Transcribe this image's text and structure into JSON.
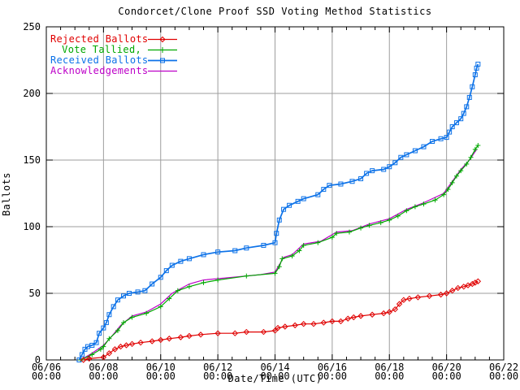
{
  "chart_data": {
    "type": "line",
    "title": "Condorcet/Clone Proof SSD Voting Method Statistics",
    "xlabel": "Date/Time (UTC)",
    "ylabel": "Ballots",
    "x_range_days": [
      0,
      16
    ],
    "ylim": [
      0,
      250
    ],
    "grid": true,
    "grid_color": "#9e9e9e",
    "legend_position": "top-left-inside",
    "x_ticks": [
      {
        "t": 0,
        "label": "06/06",
        "sublabel": "00:00"
      },
      {
        "t": 2,
        "label": "06/08",
        "sublabel": "00:00"
      },
      {
        "t": 4,
        "label": "06/10",
        "sublabel": "00:00"
      },
      {
        "t": 6,
        "label": "06/12",
        "sublabel": "00:00"
      },
      {
        "t": 8,
        "label": "06/14",
        "sublabel": "00:00"
      },
      {
        "t": 10,
        "label": "06/16",
        "sublabel": "00:00"
      },
      {
        "t": 12,
        "label": "06/18",
        "sublabel": "00:00"
      },
      {
        "t": 14,
        "label": "06/20",
        "sublabel": "00:00"
      },
      {
        "t": 16,
        "label": "06/22",
        "sublabel": "00:00"
      }
    ],
    "x_minor_tick_interval_days": 0.5,
    "y_ticks": [
      0,
      50,
      100,
      150,
      200,
      250
    ],
    "series": [
      {
        "name": "Rejected Ballots",
        "color": "#e00000",
        "marker": "diamond",
        "points": [
          [
            1.3,
            0
          ],
          [
            1.5,
            1
          ],
          [
            2.0,
            2
          ],
          [
            2.2,
            5
          ],
          [
            2.4,
            8
          ],
          [
            2.6,
            10
          ],
          [
            2.8,
            11
          ],
          [
            3.0,
            12
          ],
          [
            3.3,
            13
          ],
          [
            3.7,
            14
          ],
          [
            4.0,
            15
          ],
          [
            4.3,
            16
          ],
          [
            4.7,
            17
          ],
          [
            5.0,
            18
          ],
          [
            5.4,
            19
          ],
          [
            6.0,
            20
          ],
          [
            6.6,
            20
          ],
          [
            7.0,
            21
          ],
          [
            7.6,
            21
          ],
          [
            8.0,
            22
          ],
          [
            8.1,
            24
          ],
          [
            8.35,
            25
          ],
          [
            8.7,
            26
          ],
          [
            9.0,
            27
          ],
          [
            9.35,
            27
          ],
          [
            9.7,
            28
          ],
          [
            10.0,
            29
          ],
          [
            10.3,
            29
          ],
          [
            10.55,
            31
          ],
          [
            10.75,
            32
          ],
          [
            11.0,
            33
          ],
          [
            11.4,
            34
          ],
          [
            11.8,
            35
          ],
          [
            12.0,
            36
          ],
          [
            12.2,
            38
          ],
          [
            12.35,
            42
          ],
          [
            12.5,
            45
          ],
          [
            12.7,
            46
          ],
          [
            13.0,
            47
          ],
          [
            13.4,
            48
          ],
          [
            13.8,
            49
          ],
          [
            14.0,
            50
          ],
          [
            14.2,
            52
          ],
          [
            14.4,
            54
          ],
          [
            14.6,
            55
          ],
          [
            14.75,
            56
          ],
          [
            14.9,
            57
          ],
          [
            15.0,
            58
          ],
          [
            15.1,
            59
          ]
        ]
      },
      {
        "name": "Vote Tallied,",
        "color": "#00a800",
        "marker": "plus",
        "points": [
          [
            1.2,
            0
          ],
          [
            1.6,
            4
          ],
          [
            1.9,
            8
          ],
          [
            2.0,
            10
          ],
          [
            2.2,
            16
          ],
          [
            2.5,
            22
          ],
          [
            2.7,
            28
          ],
          [
            3.0,
            32
          ],
          [
            3.5,
            35
          ],
          [
            4.0,
            40
          ],
          [
            4.3,
            46
          ],
          [
            4.6,
            52
          ],
          [
            5.0,
            55
          ],
          [
            5.5,
            58
          ],
          [
            6.0,
            60
          ],
          [
            7.0,
            63
          ],
          [
            8.0,
            65
          ],
          [
            8.15,
            70
          ],
          [
            8.25,
            76
          ],
          [
            8.6,
            78
          ],
          [
            8.85,
            82
          ],
          [
            9.0,
            86
          ],
          [
            9.5,
            88
          ],
          [
            10.0,
            92
          ],
          [
            10.15,
            95
          ],
          [
            10.6,
            96
          ],
          [
            11.0,
            99
          ],
          [
            11.3,
            101
          ],
          [
            11.7,
            103
          ],
          [
            12.0,
            105
          ],
          [
            12.3,
            108
          ],
          [
            12.6,
            112
          ],
          [
            12.9,
            115
          ],
          [
            13.2,
            117
          ],
          [
            13.6,
            120
          ],
          [
            13.9,
            124
          ],
          [
            14.05,
            128
          ],
          [
            14.2,
            133
          ],
          [
            14.35,
            138
          ],
          [
            14.5,
            142
          ],
          [
            14.7,
            147
          ],
          [
            14.85,
            152
          ],
          [
            15.0,
            158
          ],
          [
            15.1,
            161
          ]
        ]
      },
      {
        "name": "Received Ballots",
        "color": "#0d72e8",
        "marker": "square",
        "points": [
          [
            1.15,
            0
          ],
          [
            1.25,
            4
          ],
          [
            1.35,
            8
          ],
          [
            1.45,
            10
          ],
          [
            1.6,
            11
          ],
          [
            1.75,
            13
          ],
          [
            1.85,
            20
          ],
          [
            2.0,
            24
          ],
          [
            2.1,
            28
          ],
          [
            2.2,
            34
          ],
          [
            2.35,
            40
          ],
          [
            2.5,
            45
          ],
          [
            2.7,
            48
          ],
          [
            2.9,
            50
          ],
          [
            3.2,
            51
          ],
          [
            3.45,
            52
          ],
          [
            3.7,
            57
          ],
          [
            4.0,
            62
          ],
          [
            4.2,
            67
          ],
          [
            4.4,
            71
          ],
          [
            4.7,
            74
          ],
          [
            5.0,
            76
          ],
          [
            5.5,
            79
          ],
          [
            6.0,
            81
          ],
          [
            6.6,
            82
          ],
          [
            7.0,
            84
          ],
          [
            7.6,
            86
          ],
          [
            8.0,
            88
          ],
          [
            8.05,
            95
          ],
          [
            8.15,
            105
          ],
          [
            8.3,
            113
          ],
          [
            8.5,
            116
          ],
          [
            8.8,
            119
          ],
          [
            9.0,
            121
          ],
          [
            9.5,
            124
          ],
          [
            9.7,
            128
          ],
          [
            9.9,
            131
          ],
          [
            10.3,
            132
          ],
          [
            10.7,
            134
          ],
          [
            11.0,
            136
          ],
          [
            11.2,
            140
          ],
          [
            11.4,
            142
          ],
          [
            11.8,
            143
          ],
          [
            12.0,
            145
          ],
          [
            12.2,
            148
          ],
          [
            12.4,
            152
          ],
          [
            12.6,
            154
          ],
          [
            12.9,
            157
          ],
          [
            13.2,
            160
          ],
          [
            13.5,
            164
          ],
          [
            13.8,
            166
          ],
          [
            14.0,
            167
          ],
          [
            14.1,
            171
          ],
          [
            14.2,
            175
          ],
          [
            14.35,
            178
          ],
          [
            14.5,
            181
          ],
          [
            14.6,
            185
          ],
          [
            14.7,
            190
          ],
          [
            14.8,
            197
          ],
          [
            14.9,
            205
          ],
          [
            15.0,
            214
          ],
          [
            15.05,
            219
          ],
          [
            15.1,
            222
          ]
        ]
      },
      {
        "name": "Acknowledgements",
        "color": "#bd00c8",
        "marker": "none",
        "points": [
          [
            1.2,
            0
          ],
          [
            1.6,
            5
          ],
          [
            2.0,
            11
          ],
          [
            2.3,
            18
          ],
          [
            2.6,
            26
          ],
          [
            3.0,
            33
          ],
          [
            3.5,
            36
          ],
          [
            4.0,
            42
          ],
          [
            4.4,
            50
          ],
          [
            5.0,
            57
          ],
          [
            5.5,
            60
          ],
          [
            6.5,
            62
          ],
          [
            7.5,
            64
          ],
          [
            8.0,
            66
          ],
          [
            8.3,
            77
          ],
          [
            8.6,
            79
          ],
          [
            9.0,
            87
          ],
          [
            9.6,
            89
          ],
          [
            10.15,
            96
          ],
          [
            10.7,
            97
          ],
          [
            11.3,
            102
          ],
          [
            12.0,
            106
          ],
          [
            12.6,
            113
          ],
          [
            13.2,
            118
          ],
          [
            13.9,
            125
          ],
          [
            14.2,
            134
          ],
          [
            14.5,
            143
          ],
          [
            14.8,
            150
          ],
          [
            15.05,
            158
          ]
        ]
      }
    ]
  }
}
